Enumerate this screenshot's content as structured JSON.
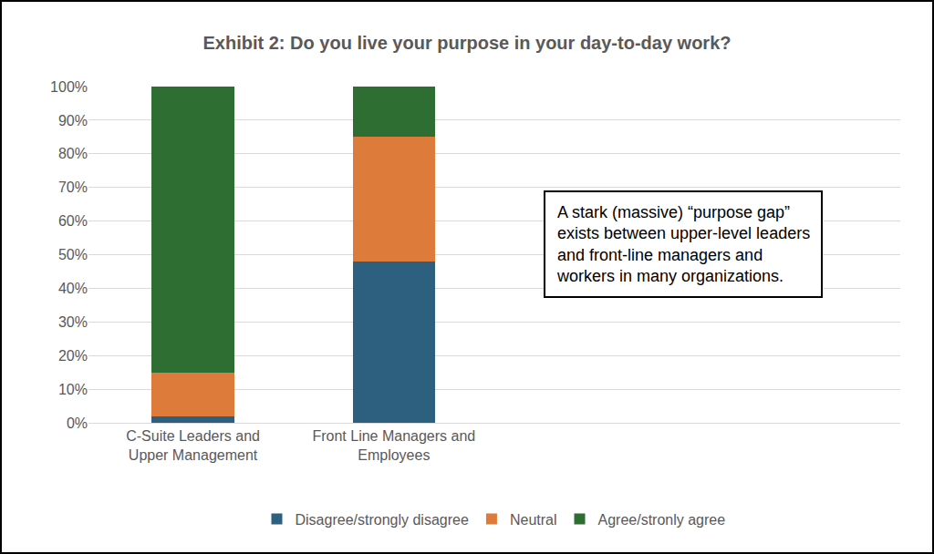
{
  "chart_data": {
    "type": "bar",
    "title": "Exhibit 2: Do you live your purpose in your day-to-day work?",
    "categories": [
      "C-Suite Leaders and Upper Management",
      "Front Line Managers and Employees"
    ],
    "series": [
      {
        "name": "Disagree/strongly disagree",
        "color": "#2d5f7f",
        "values": [
          2,
          48
        ]
      },
      {
        "name": "Neutral",
        "color": "#dd7b3b",
        "values": [
          13,
          37
        ]
      },
      {
        "name": "Agree/stronly agree",
        "color": "#2e6e33",
        "values": [
          85,
          15
        ]
      }
    ],
    "stacked": true,
    "ylim": [
      0,
      100
    ],
    "yticks": [
      {
        "value": 0,
        "label": "0%"
      },
      {
        "value": 10,
        "label": "10%"
      },
      {
        "value": 20,
        "label": "20%"
      },
      {
        "value": 30,
        "label": "30%"
      },
      {
        "value": 40,
        "label": "40%"
      },
      {
        "value": 50,
        "label": "50%"
      },
      {
        "value": 60,
        "label": "60%"
      },
      {
        "value": 70,
        "label": "70%"
      },
      {
        "value": 80,
        "label": "80%"
      },
      {
        "value": 90,
        "label": "90%"
      },
      {
        "value": 100,
        "label": "100%"
      }
    ],
    "grid": true,
    "legend": "bottom",
    "annotation": [
      "A stark (massive) “purpose gap”",
      "exists between upper-level leaders",
      "and front-line managers and",
      "workers in many organizations."
    ]
  }
}
